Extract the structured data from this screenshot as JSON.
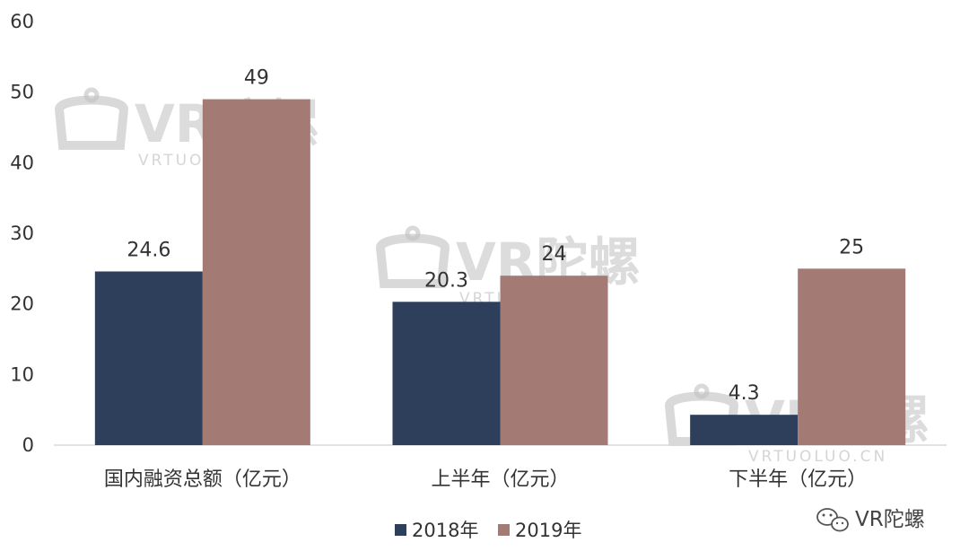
{
  "chart_data": {
    "type": "bar",
    "categories": [
      "国内融资总额（亿元）",
      "上半年（亿元）",
      "下半年（亿元）"
    ],
    "series": [
      {
        "name": "2018年",
        "color": "#2e3f5c",
        "values": [
          24.6,
          20.3,
          4.3
        ]
      },
      {
        "name": "2019年",
        "color": "#a47b74",
        "values": [
          49,
          24,
          25
        ]
      }
    ],
    "data_labels": [
      [
        "24.6",
        "20.3",
        "4.3"
      ],
      [
        "49",
        "24",
        "25"
      ]
    ],
    "yticks": [
      "0",
      "10",
      "20",
      "30",
      "40",
      "50",
      "60"
    ],
    "ylim": [
      0,
      60
    ],
    "grid": false,
    "legend_position": "bottom-center"
  },
  "watermark": {
    "brand": "VR陀螺",
    "site": "VRTUOLUO.CN",
    "icon": "vr-headset-icon"
  },
  "corner_brand": {
    "icon": "wechat-icon",
    "text": "VR陀螺"
  }
}
